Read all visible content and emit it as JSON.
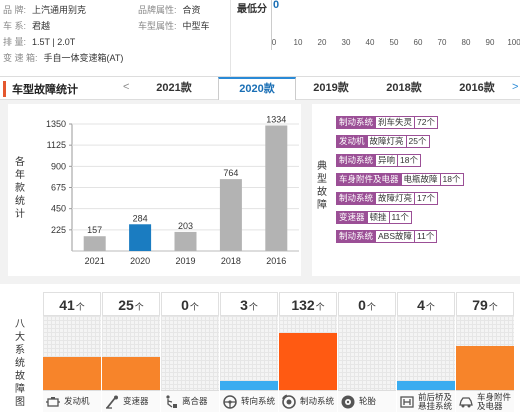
{
  "info": {
    "rows": [
      {
        "k1": "品    牌:",
        "v1": "上汽通用别克",
        "k2": "品牌属性:",
        "v2": "合资"
      },
      {
        "k1": "车    系:",
        "v1": "君越",
        "k2": "车型属性:",
        "v2": "中型车"
      },
      {
        "k1": "排    量:",
        "v1": "1.5T  |  2.0T",
        "k2": "",
        "v2": ""
      },
      {
        "k1": "变 速 箱:",
        "v1": "手自一体变速箱(AT)",
        "k2": "",
        "v2": ""
      }
    ]
  },
  "score": {
    "label": "最低分",
    "value": "0",
    "ticks": [
      "0",
      "10",
      "20",
      "30",
      "40",
      "50",
      "60",
      "70",
      "80",
      "90",
      "100"
    ]
  },
  "bar": {
    "title": "车型故障统计",
    "prev_arrow": "<",
    "next_arrow": ">",
    "tabs": [
      "2021款",
      "2020款",
      "2019款",
      "2018款",
      "2016款"
    ],
    "active_tab": "2020款"
  },
  "chart_data": {
    "type": "bar",
    "ylabel": "各年款统计",
    "categories": [
      "2021",
      "2020",
      "2019",
      "2018",
      "2016"
    ],
    "values": [
      157,
      284,
      203,
      764,
      1334
    ],
    "highlight": "2020",
    "yticks": [
      225,
      450,
      675,
      900,
      1125,
      1350
    ],
    "ylim": [
      0,
      1350
    ],
    "colors": {
      "normal": "#b3b3b3",
      "highlight": "#1a7cc1"
    }
  },
  "faults": {
    "label": "典型故障",
    "items": [
      {
        "system": "制动系统",
        "item": "刹车失灵",
        "count": "72个"
      },
      {
        "system": "发动机",
        "item": "故障灯亮",
        "count": "25个"
      },
      {
        "system": "制动系统",
        "item": "异响",
        "count": "18个"
      },
      {
        "system": "车身附件及电器",
        "item": "电瓶故障",
        "count": "18个"
      },
      {
        "system": "制动系统",
        "item": "故障灯亮",
        "count": "17个"
      },
      {
        "system": "变速器",
        "item": "顿挫",
        "count": "11个"
      },
      {
        "system": "制动系统",
        "item": "ABS故障",
        "count": "11个"
      }
    ]
  },
  "systems": {
    "label": "八大系统故障图",
    "unit": "个",
    "items": [
      {
        "name": "发动机",
        "count": "41",
        "level": 0.44,
        "color": "#f7842a",
        "icon": "engine-icon"
      },
      {
        "name": "变速器",
        "count": "25",
        "level": 0.44,
        "color": "#f7842a",
        "icon": "gearbox-icon"
      },
      {
        "name": "离合器",
        "count": "0",
        "level": 0,
        "color": "#f7842a",
        "icon": "clutch-icon"
      },
      {
        "name": "转向系统",
        "count": "3",
        "level": 0.12,
        "color": "#3aacf0",
        "icon": "steering-wheel-icon"
      },
      {
        "name": "制动系统",
        "count": "132",
        "level": 0.77,
        "color": "#ff5a12",
        "icon": "brake-disc-icon"
      },
      {
        "name": "轮胎",
        "count": "0",
        "level": 0,
        "color": "#f7842a",
        "icon": "tire-icon"
      },
      {
        "name": "前后桥及悬挂系统",
        "name_line1": "前后桥及",
        "name_line2": "悬挂系统",
        "count": "4",
        "level": 0.12,
        "color": "#3aacf0",
        "icon": "suspension-icon"
      },
      {
        "name": "车身附件及电器",
        "name_line1": "车身附件",
        "name_line2": "及电器",
        "count": "79",
        "level": 0.6,
        "color": "#f7842a",
        "icon": "car-body-icon"
      }
    ]
  }
}
